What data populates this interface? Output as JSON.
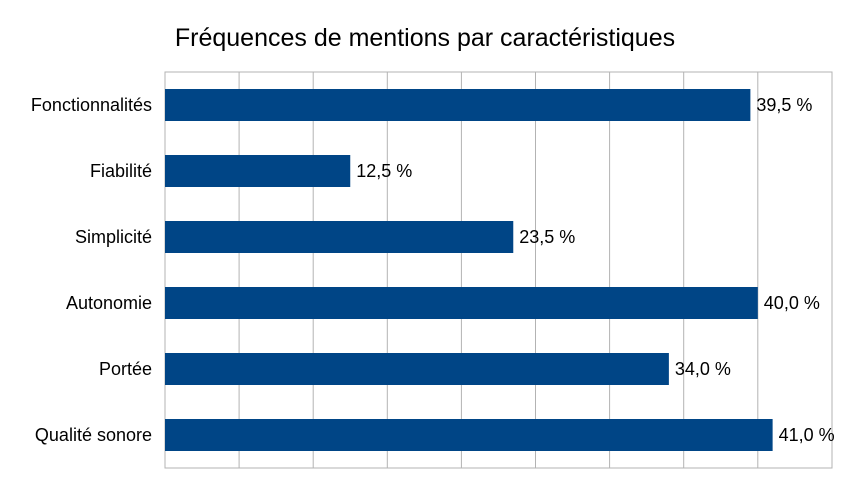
{
  "chart_data": {
    "type": "bar",
    "orientation": "horizontal",
    "title": "Fréquences de mentions par caractéristiques",
    "xlabel": "",
    "ylabel": "",
    "categories": [
      "Fonctionnalités",
      "Fiabilité",
      "Simplicité",
      "Autonomie",
      "Portée",
      "Qualité sonore"
    ],
    "values": [
      39.5,
      12.5,
      23.5,
      40.0,
      34.0,
      41.0
    ],
    "value_labels": [
      "39,5 %",
      "12,5 %",
      "23,5 %",
      "40,0 %",
      "34,0 %",
      "41,0 %"
    ],
    "xlim": [
      0,
      45
    ],
    "grid": "vertical",
    "legend": "none",
    "bar_color": "#004586",
    "grid_color": "#b3b3b3"
  }
}
